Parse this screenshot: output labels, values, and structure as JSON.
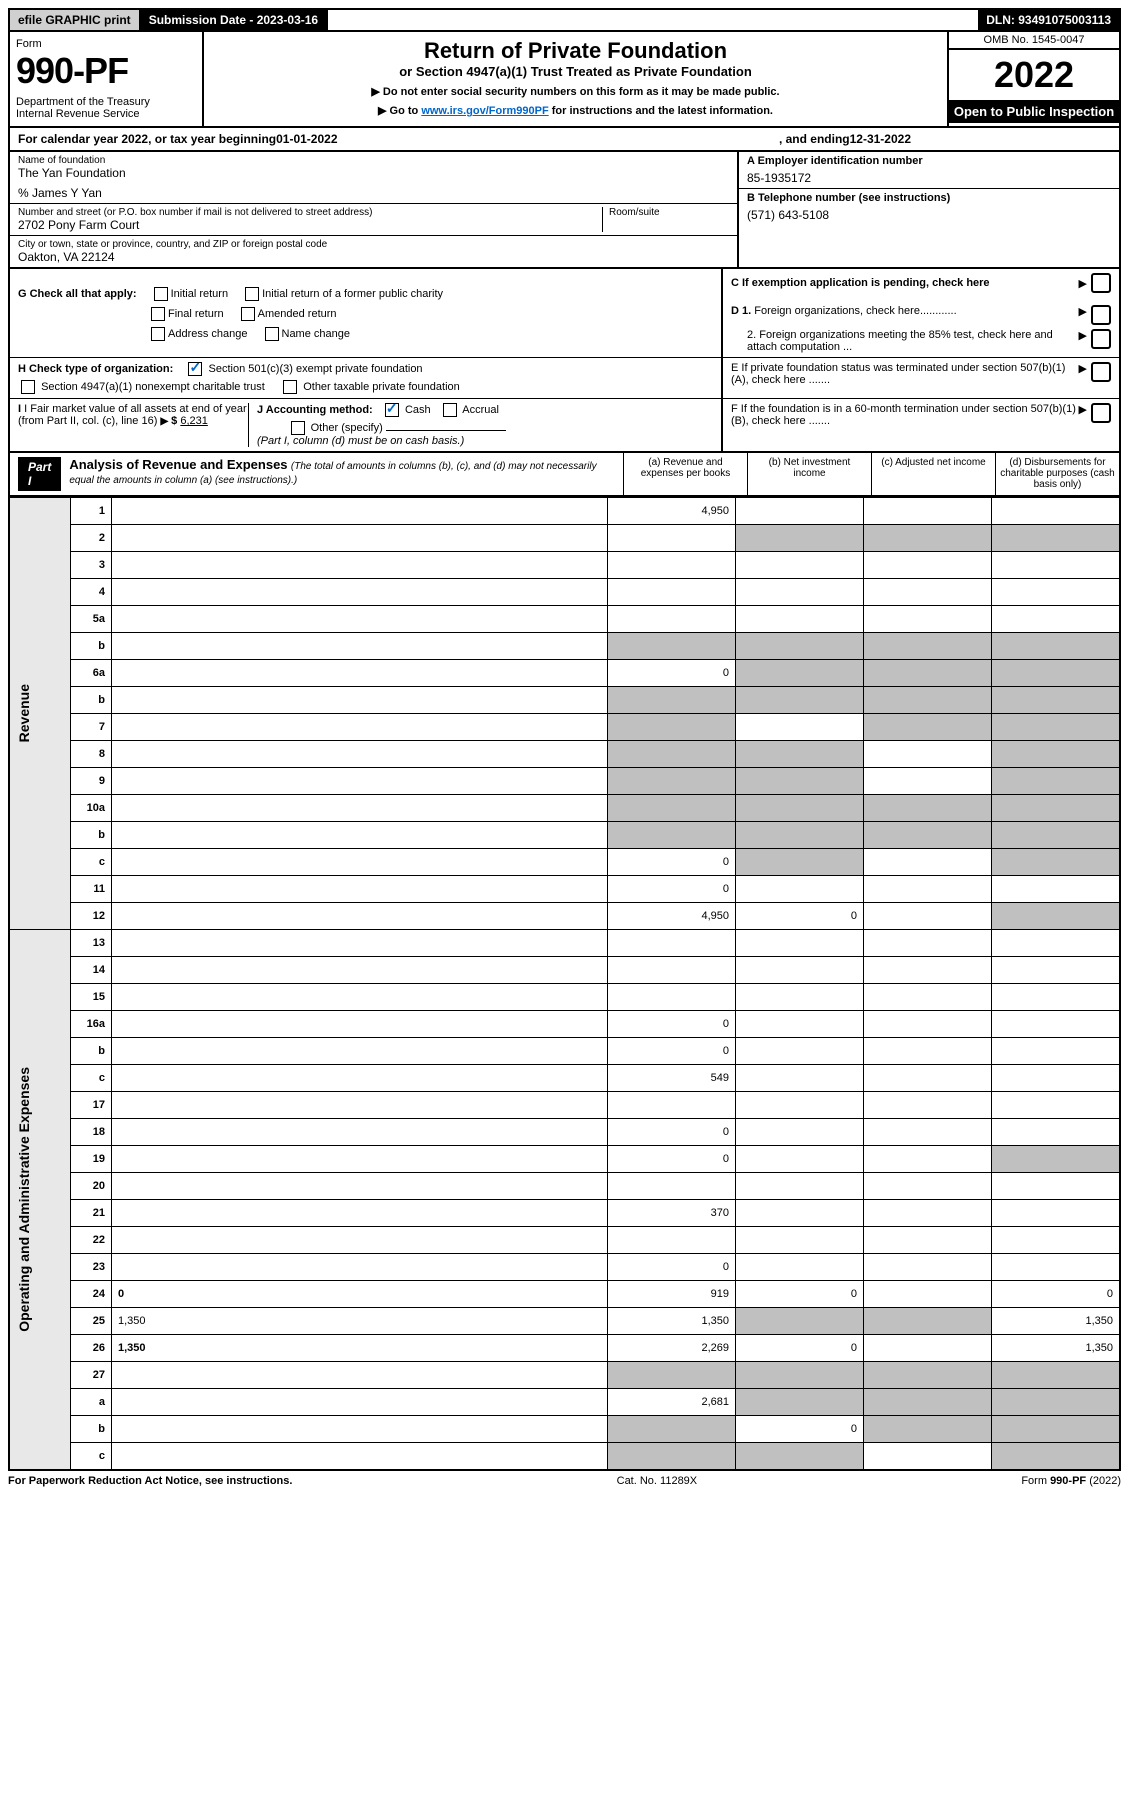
{
  "top": {
    "efile": "efile GRAPHIC print",
    "sub_label": "Submission Date - 2023-03-16",
    "dln": "DLN: 93491075003113"
  },
  "header": {
    "form": "Form",
    "num": "990-PF",
    "dept": "Department of the Treasury\nInternal Revenue Service",
    "title": "Return of Private Foundation",
    "subtitle": "or Section 4947(a)(1) Trust Treated as Private Foundation",
    "note1": "▶ Do not enter social security numbers on this form as it may be made public.",
    "note2_pre": "▶ Go to ",
    "note2_link": "www.irs.gov/Form990PF",
    "note2_post": " for instructions and the latest information.",
    "omb": "OMB No. 1545-0047",
    "year": "2022",
    "open": "Open to Public Inspection"
  },
  "cal": {
    "pre": "For calendar year 2022, or tax year beginning ",
    "begin": "01-01-2022",
    "mid": ", and ending ",
    "end": "12-31-2022"
  },
  "info": {
    "name_lbl": "Name of foundation",
    "name": "The Yan Foundation",
    "care": "% James Y Yan",
    "addr_lbl": "Number and street (or P.O. box number if mail is not delivered to street address)",
    "addr": "2702 Pony Farm Court",
    "room_lbl": "Room/suite",
    "city_lbl": "City or town, state or province, country, and ZIP or foreign postal code",
    "city": "Oakton, VA  22124",
    "a_lbl": "A Employer identification number",
    "a_val": "85-1935172",
    "b_lbl": "B Telephone number (see instructions)",
    "b_val": "(571) 643-5108",
    "c_lbl": "C If exemption application is pending, check here",
    "d1": "D 1. Foreign organizations, check here............",
    "d2": "2. Foreign organizations meeting the 85% test, check here and attach computation ...",
    "e": "E  If private foundation status was terminated under section 507(b)(1)(A), check here .......",
    "f": "F  If the foundation is in a 60-month termination under section 507(b)(1)(B), check here .......",
    "g_lbl": "G Check all that apply:",
    "g_opts": [
      "Initial return",
      "Initial return of a former public charity",
      "Final return",
      "Amended return",
      "Address change",
      "Name change"
    ],
    "h_lbl": "H Check type of organization:",
    "h1": "Section 501(c)(3) exempt private foundation",
    "h2": "Section 4947(a)(1) nonexempt charitable trust",
    "h3": "Other taxable private foundation",
    "i_lbl": "I Fair market value of all assets at end of year (from Part II, col. (c), line 16)",
    "i_val": "6,231",
    "j_lbl": "J Accounting method:",
    "j1": "Cash",
    "j2": "Accrual",
    "j3": "Other (specify)",
    "j_note": "(Part I, column (d) must be on cash basis.)"
  },
  "part1": {
    "label": "Part I",
    "title": "Analysis of Revenue and Expenses",
    "sub": "(The total of amounts in columns (b), (c), and (d) may not necessarily equal the amounts in column (a) (see instructions).)",
    "col_a": "(a)   Revenue and expenses per books",
    "col_b": "(b)   Net investment income",
    "col_c": "(c)   Adjusted net income",
    "col_d": "(d)   Disbursements for charitable purposes (cash basis only)"
  },
  "side": {
    "rev": "Revenue",
    "exp": "Operating and Administrative Expenses"
  },
  "rows": [
    {
      "n": "1",
      "d": "",
      "a": "4,950",
      "b": "",
      "c": ""
    },
    {
      "n": "2",
      "d": "",
      "a": "",
      "b": "",
      "c": "",
      "grey": "bcd"
    },
    {
      "n": "3",
      "d": "",
      "a": "",
      "b": "",
      "c": ""
    },
    {
      "n": "4",
      "d": "",
      "a": "",
      "b": "",
      "c": ""
    },
    {
      "n": "5a",
      "d": "",
      "a": "",
      "b": "",
      "c": ""
    },
    {
      "n": "b",
      "d": "",
      "a": "",
      "b": "",
      "c": "",
      "grey": "abcd",
      "inset": true
    },
    {
      "n": "6a",
      "d": "",
      "a": "0",
      "b": "",
      "c": "",
      "grey": "bcd"
    },
    {
      "n": "b",
      "d": "",
      "a": "",
      "b": "",
      "c": "",
      "grey": "abcd",
      "inset": true
    },
    {
      "n": "7",
      "d": "",
      "a": "",
      "b": "",
      "c": "",
      "grey": "acd"
    },
    {
      "n": "8",
      "d": "",
      "a": "",
      "b": "",
      "c": "",
      "grey": "abd"
    },
    {
      "n": "9",
      "d": "",
      "a": "",
      "b": "",
      "c": "",
      "grey": "abd"
    },
    {
      "n": "10a",
      "d": "",
      "a": "",
      "b": "",
      "c": "",
      "grey": "abcd",
      "inset": true
    },
    {
      "n": "b",
      "d": "",
      "a": "",
      "b": "",
      "c": "",
      "grey": "abcd",
      "inset": true
    },
    {
      "n": "c",
      "d": "",
      "a": "0",
      "b": "",
      "c": "",
      "grey": "bd"
    },
    {
      "n": "11",
      "d": "",
      "a": "0",
      "b": "",
      "c": ""
    },
    {
      "n": "12",
      "d": "",
      "a": "4,950",
      "b": "0",
      "c": "",
      "bold": true,
      "grey": "d"
    },
    {
      "n": "13",
      "d": "",
      "a": "",
      "b": "",
      "c": ""
    },
    {
      "n": "14",
      "d": "",
      "a": "",
      "b": "",
      "c": ""
    },
    {
      "n": "15",
      "d": "",
      "a": "",
      "b": "",
      "c": ""
    },
    {
      "n": "16a",
      "d": "",
      "a": "0",
      "b": "",
      "c": ""
    },
    {
      "n": "b",
      "d": "",
      "a": "0",
      "b": "",
      "c": ""
    },
    {
      "n": "c",
      "d": "",
      "a": "549",
      "b": "",
      "c": ""
    },
    {
      "n": "17",
      "d": "",
      "a": "",
      "b": "",
      "c": ""
    },
    {
      "n": "18",
      "d": "",
      "a": "0",
      "b": "",
      "c": ""
    },
    {
      "n": "19",
      "d": "",
      "a": "0",
      "b": "",
      "c": "",
      "grey": "d"
    },
    {
      "n": "20",
      "d": "",
      "a": "",
      "b": "",
      "c": ""
    },
    {
      "n": "21",
      "d": "",
      "a": "370",
      "b": "",
      "c": ""
    },
    {
      "n": "22",
      "d": "",
      "a": "",
      "b": "",
      "c": ""
    },
    {
      "n": "23",
      "d": "",
      "a": "0",
      "b": "",
      "c": ""
    },
    {
      "n": "24",
      "d": "0",
      "a": "919",
      "b": "0",
      "c": "",
      "bold": true
    },
    {
      "n": "25",
      "d": "1,350",
      "a": "1,350",
      "b": "",
      "c": "",
      "grey": "bc"
    },
    {
      "n": "26",
      "d": "1,350",
      "a": "2,269",
      "b": "0",
      "c": "",
      "bold": true
    },
    {
      "n": "27",
      "d": "",
      "a": "",
      "b": "",
      "c": "",
      "grey": "abcd"
    },
    {
      "n": "a",
      "d": "",
      "a": "2,681",
      "b": "",
      "c": "",
      "bold": true,
      "grey": "bcd"
    },
    {
      "n": "b",
      "d": "",
      "a": "",
      "b": "0",
      "c": "",
      "bold": true,
      "grey": "acd"
    },
    {
      "n": "c",
      "d": "",
      "a": "",
      "b": "",
      "c": "",
      "bold": true,
      "grey": "abd"
    }
  ],
  "footer": {
    "l": "For Paperwork Reduction Act Notice, see instructions.",
    "m": "Cat. No. 11289X",
    "r": "Form 990-PF (2022)"
  }
}
